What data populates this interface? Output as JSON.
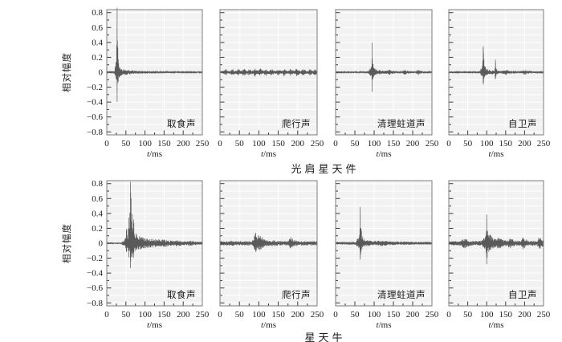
{
  "chart_data": {
    "type": "line",
    "subtype": "acoustic-waveform",
    "title": "",
    "xlabel": "t/ms",
    "xlabel_italic": "t",
    "xlabel_rest": "/ms",
    "ylabel": "相对幅度",
    "xlim": [
      0,
      250
    ],
    "ylim": [
      -0.84,
      0.84
    ],
    "grid": true,
    "legend": "none",
    "xtick_values": [
      0,
      50,
      100,
      150,
      200,
      250
    ],
    "xtick_labels": [
      "0",
      "50",
      "100",
      "150",
      "200",
      "250"
    ],
    "xtick_minor_step": 25,
    "ytick_values": [
      0.8,
      0.6,
      0.4,
      0.2,
      0,
      -0.2,
      -0.4,
      -0.6,
      -0.8
    ],
    "ytick_labels": [
      "0.8",
      "0.6",
      "0.4",
      "0.2",
      "0",
      "−0.2",
      "−0.4",
      "−0.6",
      "−0.8"
    ],
    "ytick_minor_step": 0.1,
    "style": {
      "waveform_color": "#5a5a5a",
      "frame_color": "#7d7d7d",
      "tick_color": "#3a3a3a",
      "panel_color": "#f2f2f2",
      "grid_color": "#ffffff",
      "text_color": "#1b1b1b"
    },
    "rows": [
      {
        "group": "光肩星天件",
        "plots": [
          {
            "label": "取食声",
            "noise": 0.016,
            "bursts": [
              {
                "t": 27,
                "pos": 0.8,
                "neg": 0.34,
                "rise": 1.0,
                "decay": 2.2
              },
              {
                "t": 24,
                "pos": 0.1,
                "neg": 0.06,
                "rise": 2,
                "decay": 2
              },
              {
                "t": 30,
                "pos": 0.035,
                "neg": 0.035,
                "rise": 4,
                "decay": 28
              }
            ]
          },
          {
            "label": "爬行声",
            "noise": 0.018,
            "bursts": [
              {
                "t": 15,
                "pos": 0.025
              },
              {
                "t": 32,
                "pos": 0.035
              },
              {
                "t": 48,
                "pos": 0.03
              },
              {
                "t": 62,
                "pos": 0.045
              },
              {
                "t": 75,
                "pos": 0.035
              },
              {
                "t": 90,
                "pos": 0.045
              },
              {
                "t": 103,
                "pos": 0.04
              },
              {
                "t": 118,
                "pos": 0.03
              },
              {
                "t": 133,
                "pos": 0.035
              },
              {
                "t": 150,
                "pos": 0.025
              },
              {
                "t": 165,
                "pos": 0.035
              },
              {
                "t": 182,
                "pos": 0.03
              },
              {
                "t": 198,
                "pos": 0.045
              },
              {
                "t": 214,
                "pos": 0.035
              },
              {
                "t": 232,
                "pos": 0.028
              },
              {
                "t": 245,
                "pos": 0.03
              }
            ]
          },
          {
            "label": "清理蛀道声",
            "noise": 0.016,
            "bursts": [
              {
                "t": 95,
                "pos": 0.34,
                "neg": 0.21,
                "rise": 1.0,
                "decay": 2.2
              },
              {
                "t": 92,
                "pos": 0.05,
                "neg": 0.04,
                "rise": 3,
                "decay": 3
              },
              {
                "t": 98,
                "pos": 0.03,
                "neg": 0.03,
                "rise": 4,
                "decay": 20
              },
              {
                "t": 140,
                "pos": 0.02
              },
              {
                "t": 180,
                "pos": 0.018
              },
              {
                "t": 215,
                "pos": 0.02
              }
            ]
          },
          {
            "label": "自卫声",
            "noise": 0.016,
            "bursts": [
              {
                "t": 91,
                "pos": 0.29,
                "neg": 0.11,
                "rise": 1.0,
                "decay": 2.4
              },
              {
                "t": 88,
                "pos": 0.05,
                "neg": 0.04,
                "rise": 3,
                "decay": 3
              },
              {
                "t": 123,
                "pos": 0.145,
                "neg": 0.07,
                "rise": 1.0,
                "decay": 2.2
              },
              {
                "t": 95,
                "pos": 0.03,
                "neg": 0.03,
                "rise": 6,
                "decay": 22
              },
              {
                "t": 150,
                "pos": 0.02,
                "rise": 4,
                "decay": 8
              },
              {
                "t": 200,
                "pos": 0.018,
                "rise": 4,
                "decay": 8
              }
            ]
          }
        ]
      },
      {
        "group": "星天牛",
        "plots": [
          {
            "label": "取食声",
            "noise": 0.012,
            "bursts": [
              {
                "t": 44,
                "pos": 0.02,
                "neg": 0.02,
                "rise": 3,
                "decay": 5
              },
              {
                "t": 52,
                "pos": 0.18,
                "neg": 0.1,
                "rise": 3,
                "decay": 3
              },
              {
                "t": 58,
                "pos": 0.3,
                "neg": 0.16,
                "rise": 1.5,
                "decay": 3
              },
              {
                "t": 62,
                "pos": 0.72,
                "neg": 0.27,
                "rise": 1.2,
                "decay": 5
              },
              {
                "t": 70,
                "pos": 0.15,
                "neg": 0.12,
                "rise": 3,
                "decay": 10
              },
              {
                "t": 90,
                "pos": 0.05,
                "neg": 0.05,
                "rise": 8,
                "decay": 30
              },
              {
                "t": 130,
                "pos": 0.03,
                "neg": 0.03,
                "rise": 25,
                "decay": 90
              },
              {
                "t": 150,
                "pos": 0.012,
                "rise": 4,
                "decay": 8
              },
              {
                "t": 185,
                "pos": 0.015,
                "rise": 4,
                "decay": 8
              },
              {
                "t": 220,
                "pos": 0.012,
                "rise": 4,
                "decay": 8
              }
            ]
          },
          {
            "label": "爬行声",
            "noise": 0.03,
            "bursts": [
              {
                "t": 92,
                "pos": 0.11,
                "neg": 0.085,
                "rise": 4,
                "decay": 7
              },
              {
                "t": 104,
                "pos": 0.075,
                "neg": 0.06,
                "rise": 4,
                "decay": 9
              },
              {
                "t": 183,
                "pos": 0.055,
                "neg": 0.045,
                "rise": 4,
                "decay": 7
              },
              {
                "t": 30,
                "pos": 0.012,
                "rise": 6,
                "decay": 8
              },
              {
                "t": 140,
                "pos": 0.01,
                "rise": 6,
                "decay": 8
              }
            ]
          },
          {
            "label": "清理蛀道声",
            "noise": 0.02,
            "bursts": [
              {
                "t": 64,
                "pos": 0.43,
                "neg": 0.17,
                "rise": 1.1,
                "decay": 2.6
              },
              {
                "t": 60,
                "pos": 0.07,
                "neg": 0.05,
                "rise": 4,
                "decay": 4
              },
              {
                "t": 70,
                "pos": 0.035,
                "neg": 0.035,
                "rise": 4,
                "decay": 30
              },
              {
                "t": 120,
                "pos": 0.012,
                "rise": 10,
                "decay": 30
              }
            ]
          },
          {
            "label": "自卫声",
            "noise": 0.032,
            "bursts": [
              {
                "t": 42,
                "pos": 0.05,
                "neg": 0.045,
                "rise": 5,
                "decay": 7
              },
              {
                "t": 100,
                "pos": 0.33,
                "neg": 0.23,
                "rise": 1.4,
                "decay": 5
              },
              {
                "t": 96,
                "pos": 0.06,
                "neg": 0.05,
                "rise": 4,
                "decay": 4
              },
              {
                "t": 110,
                "pos": 0.05,
                "neg": 0.05,
                "rise": 3,
                "decay": 15
              },
              {
                "t": 133,
                "pos": 0.04,
                "neg": 0.038,
                "rise": 4,
                "decay": 8
              },
              {
                "t": 162,
                "pos": 0.038,
                "neg": 0.034,
                "rise": 4,
                "decay": 8
              },
              {
                "t": 197,
                "pos": 0.06,
                "neg": 0.05,
                "rise": 3,
                "decay": 6
              },
              {
                "t": 240,
                "pos": 0.07,
                "neg": 0.065,
                "rise": 3,
                "decay": 5
              }
            ]
          }
        ]
      }
    ]
  }
}
